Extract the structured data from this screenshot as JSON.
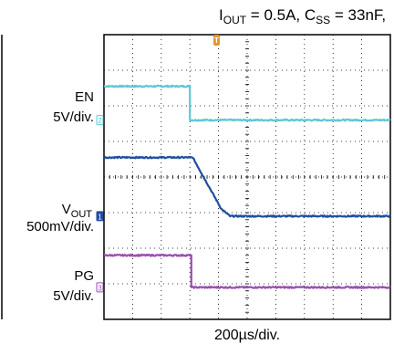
{
  "colors": {
    "en": "#5ec8d6",
    "vout": "#1f4fa0",
    "pg": "#9a4fb0",
    "marker_top": "#e8952d",
    "grid": "#000000"
  },
  "header": {
    "condition_main": "I",
    "condition_sub1": "OUT",
    "condition_mid": " = 0.5A, C",
    "condition_sub2": "SS",
    "condition_end": " = 33nF,"
  },
  "chart_data": {
    "type": "line",
    "title": "",
    "xlabel": "200µs/div.",
    "divisions": {
      "x": 10,
      "y": 8
    },
    "trigger_marker": "T",
    "series": [
      {
        "name": "EN",
        "scale": "5V/div.",
        "channel_marker": "2",
        "x": [
          0,
          3.0,
          3.0,
          10
        ],
        "y": [
          6.55,
          6.55,
          5.6,
          5.6
        ]
      },
      {
        "name": "V",
        "name_sub": "OUT",
        "scale": "500mV/div.",
        "channel_marker": "1",
        "x": [
          0,
          3.1,
          4.1,
          4.4,
          10
        ],
        "y": [
          4.55,
          4.55,
          3.1,
          2.9,
          2.9
        ]
      },
      {
        "name": "PG",
        "scale": "5V/div.",
        "channel_marker": "3",
        "x": [
          0,
          3.05,
          3.05,
          10
        ],
        "y": [
          1.8,
          1.8,
          0.9,
          0.9
        ]
      }
    ]
  }
}
